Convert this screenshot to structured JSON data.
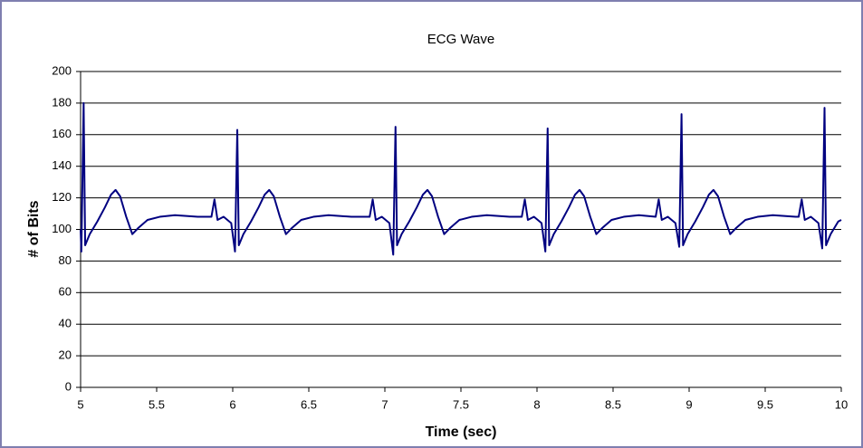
{
  "chart_data": {
    "type": "line",
    "title": "ECG Wave",
    "x_label": "Time (sec)",
    "y_label": "# of Bits",
    "color": "#000080",
    "grid": true,
    "xlim": [
      5,
      10
    ],
    "xticks": [
      5,
      5.5,
      6,
      6.5,
      7,
      7.5,
      8,
      8.5,
      9,
      9.5,
      10
    ],
    "ylim": [
      0,
      200
    ],
    "yticks": [
      0,
      20,
      40,
      60,
      80,
      100,
      120,
      140,
      160,
      180,
      200
    ],
    "x": [
      5.0,
      5.005,
      5.02,
      5.03,
      5.06,
      5.11,
      5.16,
      5.2,
      5.23,
      5.26,
      5.3,
      5.34,
      5.38,
      5.44,
      5.52,
      5.62,
      5.77,
      5.86,
      5.88,
      5.9,
      5.94,
      5.99,
      6.015,
      6.03,
      6.04,
      6.07,
      6.12,
      6.17,
      6.21,
      6.24,
      6.27,
      6.31,
      6.35,
      6.39,
      6.45,
      6.53,
      6.63,
      6.78,
      6.9,
      6.92,
      6.94,
      6.98,
      7.03,
      7.055,
      7.07,
      7.08,
      7.11,
      7.16,
      7.21,
      7.25,
      7.28,
      7.31,
      7.35,
      7.39,
      7.43,
      7.49,
      7.57,
      7.67,
      7.82,
      7.9,
      7.92,
      7.94,
      7.98,
      8.03,
      8.055,
      8.07,
      8.08,
      8.11,
      8.16,
      8.21,
      8.25,
      8.28,
      8.31,
      8.35,
      8.39,
      8.43,
      8.49,
      8.57,
      8.67,
      8.78,
      8.8,
      8.82,
      8.86,
      8.91,
      8.935,
      8.95,
      8.96,
      8.99,
      9.04,
      9.09,
      9.13,
      9.16,
      9.19,
      9.23,
      9.27,
      9.31,
      9.37,
      9.45,
      9.55,
      9.7,
      9.72,
      9.74,
      9.76,
      9.8,
      9.85,
      9.875,
      9.89,
      9.9,
      9.93,
      9.98,
      10.0
    ],
    "values": [
      100,
      86,
      180,
      90,
      97,
      105,
      114,
      122,
      125,
      121,
      108,
      97,
      101,
      106,
      108,
      109,
      108,
      108,
      119,
      106,
      108,
      104,
      86,
      163,
      90,
      97,
      105,
      114,
      122,
      125,
      121,
      108,
      97,
      101,
      106,
      108,
      109,
      108,
      108,
      119,
      106,
      108,
      104,
      84,
      165,
      90,
      97,
      105,
      114,
      122,
      125,
      121,
      108,
      97,
      101,
      106,
      108,
      109,
      108,
      108,
      119,
      106,
      108,
      104,
      86,
      164,
      90,
      97,
      105,
      114,
      122,
      125,
      121,
      108,
      97,
      101,
      106,
      108,
      109,
      108,
      119,
      106,
      108,
      104,
      89,
      173,
      90,
      97,
      105,
      114,
      122,
      125,
      121,
      108,
      97,
      101,
      106,
      108,
      109,
      108,
      108,
      119,
      106,
      108,
      104,
      88,
      177,
      90,
      97,
      105,
      106
    ]
  }
}
